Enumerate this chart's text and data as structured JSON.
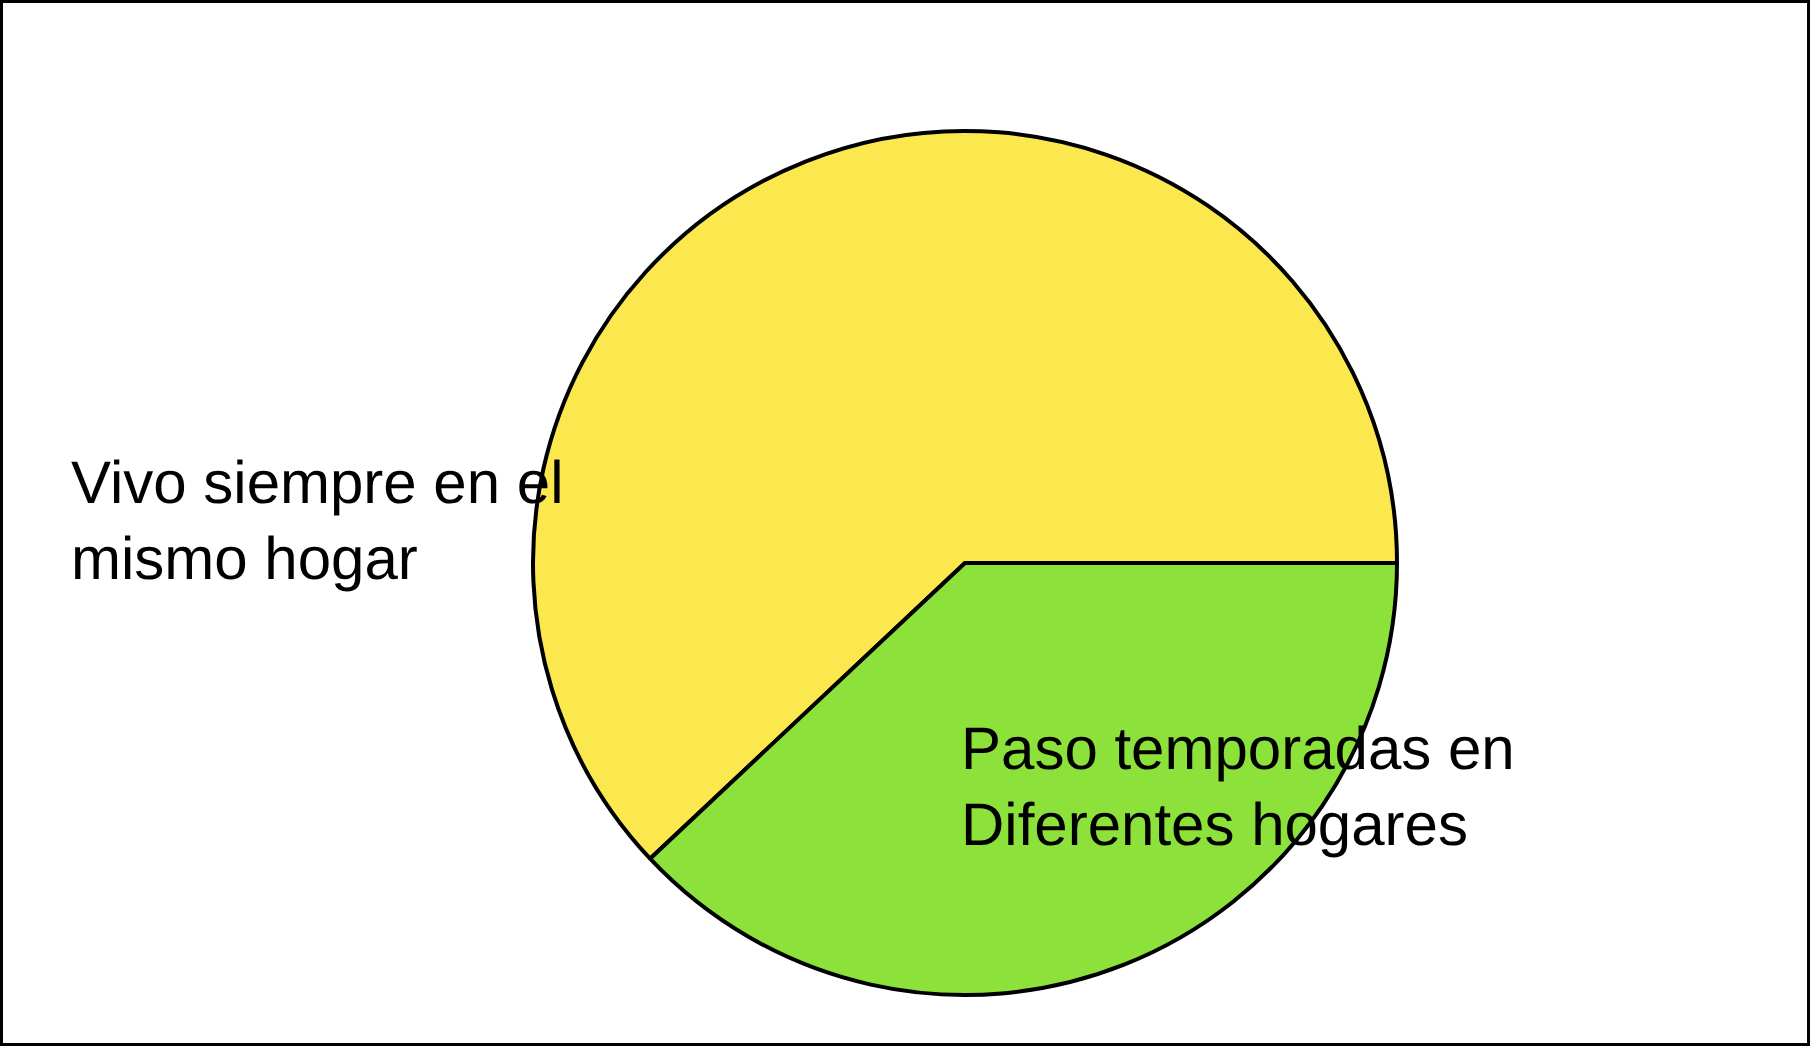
{
  "chart_data": {
    "type": "pie",
    "categories": [
      "Vivo siempre en el\nmismo hogar",
      "Paso temporadas en\nDiferentes hogares"
    ],
    "values": [
      62,
      38
    ],
    "colors": [
      "#fbe84f",
      "#8ce23a"
    ]
  }
}
